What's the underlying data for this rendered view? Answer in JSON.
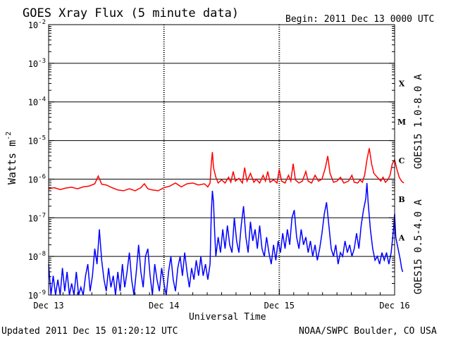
{
  "chart_data": {
    "type": "line",
    "title": "GOES Xray Flux (5 minute data)",
    "begin_label": "Begin:  2011 Dec 13 0000 UTC",
    "ylabel": "Watts m",
    "ylabel_sup": "-2",
    "xlabel": "Universal Time",
    "footer_left": "Updated 2011 Dec 15 01:20:12 UTC",
    "footer_right": "NOAA/SWPC Boulder, CO USA",
    "y_scale": "log",
    "ylim": [
      1e-09,
      0.01
    ],
    "y_ticks": [
      {
        "base": "10",
        "exp": "-9",
        "value": -9
      },
      {
        "base": "10",
        "exp": "-8",
        "value": -8
      },
      {
        "base": "10",
        "exp": "-7",
        "value": -7
      },
      {
        "base": "10",
        "exp": "-6",
        "value": -6
      },
      {
        "base": "10",
        "exp": "-5",
        "value": -5
      },
      {
        "base": "10",
        "exp": "-4",
        "value": -4
      },
      {
        "base": "10",
        "exp": "-3",
        "value": -3
      },
      {
        "base": "10",
        "exp": "-2",
        "value": -2
      }
    ],
    "x_ticks": [
      "Dec 13",
      "Dec 14",
      "Dec 15",
      "Dec 16"
    ],
    "flare_classes": [
      {
        "label": "A",
        "value": -7.5
      },
      {
        "label": "B",
        "value": -6.5
      },
      {
        "label": "C",
        "value": -5.5
      },
      {
        "label": "M",
        "value": -4.5
      },
      {
        "label": "X",
        "value": -3.5
      }
    ],
    "grid": true,
    "x_unit": "days since Dec 13 0000 UTC",
    "series": [
      {
        "name": "GOES15 1.0-8.0 A",
        "color": "#ff0000",
        "points": [
          [
            0.0,
            -6.25
          ],
          [
            0.05,
            -6.22
          ],
          [
            0.1,
            -6.27
          ],
          [
            0.15,
            -6.23
          ],
          [
            0.2,
            -6.21
          ],
          [
            0.25,
            -6.25
          ],
          [
            0.3,
            -6.2
          ],
          [
            0.35,
            -6.18
          ],
          [
            0.4,
            -6.12
          ],
          [
            0.43,
            -5.92
          ],
          [
            0.46,
            -6.13
          ],
          [
            0.5,
            -6.15
          ],
          [
            0.55,
            -6.22
          ],
          [
            0.6,
            -6.28
          ],
          [
            0.65,
            -6.3
          ],
          [
            0.7,
            -6.25
          ],
          [
            0.75,
            -6.3
          ],
          [
            0.8,
            -6.22
          ],
          [
            0.83,
            -6.12
          ],
          [
            0.86,
            -6.25
          ],
          [
            0.9,
            -6.28
          ],
          [
            0.95,
            -6.3
          ],
          [
            1.0,
            -6.22
          ],
          [
            1.05,
            -6.18
          ],
          [
            1.1,
            -6.1
          ],
          [
            1.15,
            -6.2
          ],
          [
            1.2,
            -6.12
          ],
          [
            1.25,
            -6.1
          ],
          [
            1.3,
            -6.15
          ],
          [
            1.35,
            -6.12
          ],
          [
            1.38,
            -6.2
          ],
          [
            1.4,
            -6.1
          ],
          [
            1.41,
            -5.6
          ],
          [
            1.42,
            -5.3
          ],
          [
            1.43,
            -5.7
          ],
          [
            1.45,
            -5.95
          ],
          [
            1.47,
            -6.1
          ],
          [
            1.5,
            -6.02
          ],
          [
            1.53,
            -6.1
          ],
          [
            1.56,
            -5.95
          ],
          [
            1.58,
            -6.08
          ],
          [
            1.6,
            -5.8
          ],
          [
            1.62,
            -6.05
          ],
          [
            1.65,
            -5.98
          ],
          [
            1.68,
            -6.1
          ],
          [
            1.7,
            -5.7
          ],
          [
            1.72,
            -6.05
          ],
          [
            1.75,
            -5.85
          ],
          [
            1.78,
            -6.08
          ],
          [
            1.8,
            -6.0
          ],
          [
            1.83,
            -6.1
          ],
          [
            1.86,
            -5.9
          ],
          [
            1.88,
            -6.05
          ],
          [
            1.9,
            -5.8
          ],
          [
            1.92,
            -6.08
          ],
          [
            1.95,
            -6.02
          ],
          [
            1.98,
            -6.1
          ],
          [
            2.0,
            -5.75
          ],
          [
            2.02,
            -6.05
          ],
          [
            2.05,
            -6.1
          ],
          [
            2.08,
            -5.9
          ],
          [
            2.1,
            -6.05
          ],
          [
            2.12,
            -5.6
          ],
          [
            2.14,
            -6.02
          ],
          [
            2.17,
            -6.1
          ],
          [
            2.2,
            -6.05
          ],
          [
            2.23,
            -5.8
          ],
          [
            2.25,
            -6.05
          ],
          [
            2.28,
            -6.1
          ],
          [
            2.31,
            -5.9
          ],
          [
            2.34,
            -6.05
          ],
          [
            2.37,
            -6.0
          ],
          [
            2.4,
            -5.7
          ],
          [
            2.42,
            -5.4
          ],
          [
            2.44,
            -5.85
          ],
          [
            2.47,
            -6.08
          ],
          [
            2.5,
            -6.05
          ],
          [
            2.53,
            -5.95
          ],
          [
            2.56,
            -6.1
          ],
          [
            2.6,
            -6.05
          ],
          [
            2.63,
            -5.9
          ],
          [
            2.65,
            -6.08
          ],
          [
            2.68,
            -6.1
          ],
          [
            2.7,
            -6.02
          ],
          [
            2.72,
            -6.08
          ],
          [
            2.74,
            -5.9
          ],
          [
            2.76,
            -5.5
          ],
          [
            2.78,
            -5.2
          ],
          [
            2.8,
            -5.6
          ],
          [
            2.82,
            -5.85
          ],
          [
            2.85,
            -5.95
          ],
          [
            2.88,
            -6.05
          ],
          [
            2.9,
            -5.95
          ],
          [
            2.92,
            -6.08
          ],
          [
            2.94,
            -6.02
          ],
          [
            2.96,
            -5.9
          ],
          [
            2.98,
            -5.6
          ],
          [
            3.0,
            -5.5
          ],
          [
            3.02,
            -5.75
          ],
          [
            3.04,
            -5.95
          ],
          [
            3.06,
            -6.05
          ],
          [
            3.08,
            -6.1
          ]
        ]
      },
      {
        "name": "GOES15 0.5-4.0 A",
        "color": "#0000ff",
        "points": [
          [
            0.0,
            -8.2
          ],
          [
            0.02,
            -9.0
          ],
          [
            0.04,
            -8.5
          ],
          [
            0.06,
            -9.0
          ],
          [
            0.08,
            -8.6
          ],
          [
            0.1,
            -9.0
          ],
          [
            0.12,
            -8.3
          ],
          [
            0.14,
            -8.9
          ],
          [
            0.16,
            -8.4
          ],
          [
            0.18,
            -9.0
          ],
          [
            0.2,
            -8.7
          ],
          [
            0.22,
            -9.0
          ],
          [
            0.24,
            -8.4
          ],
          [
            0.26,
            -9.0
          ],
          [
            0.28,
            -8.8
          ],
          [
            0.3,
            -9.0
          ],
          [
            0.32,
            -8.5
          ],
          [
            0.34,
            -8.2
          ],
          [
            0.36,
            -8.9
          ],
          [
            0.38,
            -8.5
          ],
          [
            0.4,
            -7.8
          ],
          [
            0.42,
            -8.2
          ],
          [
            0.44,
            -7.3
          ],
          [
            0.46,
            -8.1
          ],
          [
            0.48,
            -8.6
          ],
          [
            0.5,
            -8.9
          ],
          [
            0.52,
            -8.3
          ],
          [
            0.54,
            -8.8
          ],
          [
            0.56,
            -8.5
          ],
          [
            0.58,
            -9.0
          ],
          [
            0.6,
            -8.4
          ],
          [
            0.62,
            -8.9
          ],
          [
            0.64,
            -8.2
          ],
          [
            0.66,
            -8.8
          ],
          [
            0.68,
            -8.4
          ],
          [
            0.7,
            -7.9
          ],
          [
            0.72,
            -8.6
          ],
          [
            0.74,
            -9.0
          ],
          [
            0.76,
            -8.4
          ],
          [
            0.78,
            -7.7
          ],
          [
            0.8,
            -8.4
          ],
          [
            0.82,
            -8.8
          ],
          [
            0.84,
            -8.0
          ],
          [
            0.86,
            -7.8
          ],
          [
            0.88,
            -8.5
          ],
          [
            0.9,
            -9.0
          ],
          [
            0.92,
            -8.2
          ],
          [
            0.94,
            -8.6
          ],
          [
            0.96,
            -8.9
          ],
          [
            0.98,
            -8.3
          ],
          [
            1.0,
            -8.7
          ],
          [
            1.02,
            -9.0
          ],
          [
            1.04,
            -8.4
          ],
          [
            1.06,
            -8.0
          ],
          [
            1.08,
            -8.6
          ],
          [
            1.1,
            -8.9
          ],
          [
            1.12,
            -8.3
          ],
          [
            1.14,
            -8.0
          ],
          [
            1.16,
            -8.5
          ],
          [
            1.18,
            -7.9
          ],
          [
            1.2,
            -8.4
          ],
          [
            1.22,
            -8.8
          ],
          [
            1.24,
            -8.3
          ],
          [
            1.26,
            -8.6
          ],
          [
            1.28,
            -8.1
          ],
          [
            1.3,
            -8.5
          ],
          [
            1.32,
            -8.0
          ],
          [
            1.34,
            -8.5
          ],
          [
            1.36,
            -8.2
          ],
          [
            1.38,
            -8.6
          ],
          [
            1.4,
            -8.2
          ],
          [
            1.41,
            -6.9
          ],
          [
            1.42,
            -6.3
          ],
          [
            1.43,
            -6.6
          ],
          [
            1.44,
            -7.4
          ],
          [
            1.45,
            -8.0
          ],
          [
            1.47,
            -7.5
          ],
          [
            1.49,
            -7.9
          ],
          [
            1.51,
            -7.3
          ],
          [
            1.53,
            -7.8
          ],
          [
            1.55,
            -7.2
          ],
          [
            1.57,
            -7.7
          ],
          [
            1.59,
            -7.9
          ],
          [
            1.61,
            -7.0
          ],
          [
            1.63,
            -7.6
          ],
          [
            1.65,
            -7.9
          ],
          [
            1.67,
            -7.2
          ],
          [
            1.69,
            -6.7
          ],
          [
            1.71,
            -7.5
          ],
          [
            1.73,
            -7.9
          ],
          [
            1.75,
            -7.1
          ],
          [
            1.77,
            -7.6
          ],
          [
            1.79,
            -7.3
          ],
          [
            1.81,
            -7.8
          ],
          [
            1.83,
            -7.2
          ],
          [
            1.85,
            -7.8
          ],
          [
            1.87,
            -8.0
          ],
          [
            1.89,
            -7.5
          ],
          [
            1.91,
            -7.9
          ],
          [
            1.93,
            -8.2
          ],
          [
            1.95,
            -7.7
          ],
          [
            1.97,
            -8.1
          ],
          [
            1.99,
            -7.6
          ],
          [
            2.01,
            -7.9
          ],
          [
            2.03,
            -7.4
          ],
          [
            2.05,
            -7.8
          ],
          [
            2.07,
            -7.3
          ],
          [
            2.09,
            -7.7
          ],
          [
            2.11,
            -7.0
          ],
          [
            2.13,
            -6.8
          ],
          [
            2.15,
            -7.5
          ],
          [
            2.17,
            -7.8
          ],
          [
            2.19,
            -7.3
          ],
          [
            2.21,
            -7.7
          ],
          [
            2.23,
            -7.5
          ],
          [
            2.25,
            -7.9
          ],
          [
            2.27,
            -7.6
          ],
          [
            2.29,
            -8.0
          ],
          [
            2.31,
            -7.7
          ],
          [
            2.33,
            -8.1
          ],
          [
            2.35,
            -7.8
          ],
          [
            2.37,
            -7.4
          ],
          [
            2.39,
            -6.9
          ],
          [
            2.41,
            -6.6
          ],
          [
            2.43,
            -7.2
          ],
          [
            2.45,
            -7.8
          ],
          [
            2.47,
            -8.0
          ],
          [
            2.49,
            -7.7
          ],
          [
            2.51,
            -8.2
          ],
          [
            2.53,
            -7.9
          ],
          [
            2.55,
            -8.0
          ],
          [
            2.57,
            -7.6
          ],
          [
            2.59,
            -7.9
          ],
          [
            2.61,
            -7.7
          ],
          [
            2.63,
            -8.0
          ],
          [
            2.65,
            -7.8
          ],
          [
            2.67,
            -7.4
          ],
          [
            2.69,
            -7.8
          ],
          [
            2.71,
            -7.2
          ],
          [
            2.73,
            -6.8
          ],
          [
            2.75,
            -6.5
          ],
          [
            2.76,
            -6.1
          ],
          [
            2.77,
            -6.6
          ],
          [
            2.79,
            -7.3
          ],
          [
            2.81,
            -7.8
          ],
          [
            2.83,
            -8.1
          ],
          [
            2.85,
            -8.0
          ],
          [
            2.87,
            -8.2
          ],
          [
            2.89,
            -7.9
          ],
          [
            2.91,
            -8.1
          ],
          [
            2.93,
            -7.9
          ],
          [
            2.95,
            -8.2
          ],
          [
            2.97,
            -7.9
          ],
          [
            2.99,
            -7.3
          ],
          [
            3.0,
            -6.9
          ],
          [
            3.01,
            -7.5
          ],
          [
            3.03,
            -7.8
          ],
          [
            3.05,
            -8.1
          ],
          [
            3.06,
            -8.3
          ],
          [
            3.07,
            -8.4
          ]
        ]
      }
    ]
  }
}
